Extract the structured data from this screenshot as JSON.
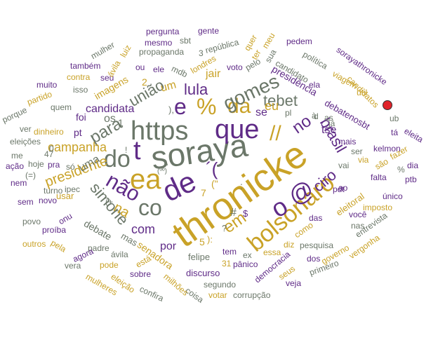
{
  "colors": {
    "purple": "#5f2b87",
    "gold": "#c9a227",
    "gray": "#6b7769",
    "background": "#ffffff"
  },
  "words": [
    {
      "t": "soraya",
      "c": "gray"
    },
    {
      "t": "thronicke",
      "c": "gold"
    },
    {
      "t": "de",
      "c": "purple"
    },
    {
      "t": "https",
      "c": "gray"
    },
    {
      "t": "que",
      "c": "purple"
    },
    {
      "t": "bolsonaro",
      "c": "gold"
    },
    {
      "t": "do",
      "c": "gray"
    },
    {
      "t": "ea",
      "c": "gold"
    },
    {
      "t": "co",
      "c": "gray"
    },
    {
      "t": "não",
      "c": "purple"
    },
    {
      "t": "o",
      "c": "purple"
    },
    {
      "t": "@",
      "c": "purple"
    },
    {
      "t": "%",
      "c": "gold"
    },
    {
      "t": "da",
      "c": "gold"
    },
    {
      "t": "e",
      "c": "purple"
    },
    {
      "t": "t",
      "c": "purple"
    },
    {
      "t": "gomes",
      "c": "gray"
    },
    {
      "t": "tebet",
      "c": "gray"
    },
    {
      "t": "lula",
      "c": "purple"
    },
    {
      "t": "para",
      "c": "gray"
    },
    {
      "t": "união",
      "c": "gray"
    },
    {
      "t": "ciro",
      "c": "purple"
    },
    {
      "t": "brasil",
      "c": "purple"
    },
    {
      "t": "no",
      "c": "purple"
    },
    {
      "t": "em",
      "c": "gold"
    },
    {
      "t": "simone",
      "c": "gray"
    },
    {
      "t": "na",
      "c": "gold"
    },
    {
      "t": "presidente",
      "c": "gold"
    },
    {
      "t": "campanha",
      "c": "gold"
    },
    {
      "t": "candidata",
      "c": "purple"
    },
    {
      "t": "com",
      "c": "purple"
    },
    {
      "t": "por",
      "c": "purple"
    },
    {
      "t": "uma",
      "c": "gray"
    },
    {
      "t": "tse",
      "c": "purple"
    },
    {
      "t": "eu",
      "c": "gold"
    },
    {
      "t": "se",
      "c": "purple"
    },
    {
      "t": "jair",
      "c": "gold"
    },
    {
      "t": "um",
      "c": "gold"
    },
    {
      "t": "os",
      "c": "gray"
    },
    {
      "t": "foi",
      "c": "purple"
    },
    {
      "t": "pt",
      "c": "purple"
    },
    {
      "t": "senadora",
      "c": "gold"
    },
    {
      "t": "debate",
      "c": "gray"
    },
    {
      "t": "mas",
      "c": "gray"
    },
    {
      "t": "felipe",
      "c": "gray"
    },
    {
      "t": "tem",
      "c": "purple"
    },
    {
      "t": "essa",
      "c": "gold"
    },
    {
      "t": "diz",
      "c": "gold"
    },
    {
      "t": "pesquisa",
      "c": "gray"
    },
    {
      "t": "das",
      "c": "purple"
    },
    {
      "t": "como",
      "c": "gold"
    },
    {
      "t": "pdt",
      "c": "purple"
    },
    {
      "t": "eleitoral",
      "c": "gold"
    },
    {
      "t": "ao",
      "c": "purple"
    },
    {
      "t": "vai",
      "c": "gray"
    },
    {
      "t": "mais",
      "c": "purple"
    },
    {
      "t": "debatenosbt",
      "c": "purple"
    },
    {
      "t": "presidência",
      "c": "purple"
    },
    {
      "t": "candidato",
      "c": "gray"
    },
    {
      "t": "ela",
      "c": "purple"
    },
    {
      "t": "política",
      "c": "gray"
    },
    {
      "t": "sorayathronicke",
      "c": "purple"
    },
    {
      "t": "viagem",
      "c": "gold"
    },
    {
      "t": "útil",
      "c": "gold"
    },
    {
      "t": "candidatos",
      "c": "gold"
    },
    {
      "t": "ub",
      "c": "gray"
    },
    {
      "t": "tá",
      "c": "purple"
    },
    {
      "t": "eleita",
      "c": "purple"
    },
    {
      "t": "fazer",
      "c": "gold"
    },
    {
      "t": "dia",
      "c": "purple"
    },
    {
      "t": "ptb",
      "c": "purple"
    },
    {
      "t": "kelmon",
      "c": "purple"
    },
    {
      "t": "ser",
      "c": "gray"
    },
    {
      "t": "via",
      "c": "gold"
    },
    {
      "t": "são",
      "c": "gold"
    },
    {
      "t": "falta",
      "c": "purple"
    },
    {
      "t": "único",
      "c": "purple"
    },
    {
      "t": "imposto",
      "c": "gold"
    },
    {
      "t": "você",
      "c": "purple"
    },
    {
      "t": "nas",
      "c": "gray"
    },
    {
      "t": "entrevista",
      "c": "gray"
    },
    {
      "t": "vergonha",
      "c": "gold"
    },
    {
      "t": "governo",
      "c": "gold"
    },
    {
      "t": "dos",
      "c": "purple"
    },
    {
      "t": "primeiro",
      "c": "gray"
    },
    {
      "t": "seus",
      "c": "gold"
    },
    {
      "t": "veja",
      "c": "purple"
    },
    {
      "t": "democracia",
      "c": "purple"
    },
    {
      "t": "pânico",
      "c": "purple"
    },
    {
      "t": "discurso",
      "c": "purple"
    },
    {
      "t": "segundo",
      "c": "gray"
    },
    {
      "t": "corrupção",
      "c": "gray"
    },
    {
      "t": "votar",
      "c": "gold"
    },
    {
      "t": "coisa",
      "c": "gray"
    },
    {
      "t": "milhões",
      "c": "gold"
    },
    {
      "t": "confira",
      "c": "gray"
    },
    {
      "t": "sobre",
      "c": "purple"
    },
    {
      "t": "eleição",
      "c": "gold"
    },
    {
      "t": "mulheres",
      "c": "gold"
    },
    {
      "t": "está",
      "c": "gold"
    },
    {
      "t": "pode",
      "c": "gold"
    },
    {
      "t": "ávila",
      "c": "gray"
    },
    {
      "t": "padre",
      "c": "gray"
    },
    {
      "t": "agora",
      "c": "purple"
    },
    {
      "t": "vera",
      "c": "gray"
    },
    {
      "t": "pela",
      "c": "gold"
    },
    {
      "t": "outros",
      "c": "gold"
    },
    {
      "t": "proíba",
      "c": "purple"
    },
    {
      "t": "povo",
      "c": "gray"
    },
    {
      "t": "sem",
      "c": "purple"
    },
    {
      "t": "novo",
      "c": "purple"
    },
    {
      "t": "onu",
      "c": "purple"
    },
    {
      "t": "turno",
      "c": "gray"
    },
    {
      "t": "ipec",
      "c": "gray"
    },
    {
      "t": "nem",
      "c": "purple"
    },
    {
      "t": "ação",
      "c": "purple"
    },
    {
      "t": "me",
      "c": "gray"
    },
    {
      "t": "hoje",
      "c": "gray"
    },
    {
      "t": "pra",
      "c": "purple"
    },
    {
      "t": "usar",
      "c": "gold"
    },
    {
      "t": "só",
      "c": "gray"
    },
    {
      "t": "eleições",
      "c": "gray"
    },
    {
      "t": "ver",
      "c": "gray"
    },
    {
      "t": "dinheiro",
      "c": "gold"
    },
    {
      "t": "quem",
      "c": "gray"
    },
    {
      "t": "porque",
      "c": "gray"
    },
    {
      "t": "partido",
      "c": "gold"
    },
    {
      "t": "isso",
      "c": "gray"
    },
    {
      "t": "contra",
      "c": "gold"
    },
    {
      "t": "muito",
      "c": "purple"
    },
    {
      "t": "também",
      "c": "purple"
    },
    {
      "t": "seu",
      "c": "purple"
    },
    {
      "t": "imagens",
      "c": "gold"
    },
    {
      "t": "ávila",
      "c": "gold"
    },
    {
      "t": "mulher",
      "c": "gray"
    },
    {
      "t": "luiz",
      "c": "gold"
    },
    {
      "t": "ou",
      "c": "purple"
    },
    {
      "t": "ele",
      "c": "purple"
    },
    {
      "t": "mdb",
      "c": "gray"
    },
    {
      "t": "londres",
      "c": "gold"
    },
    {
      "t": "voto",
      "c": "purple"
    },
    {
      "t": "pelo",
      "c": "gray"
    },
    {
      "t": "sua",
      "c": "gray"
    },
    {
      "t": "propaganda",
      "c": "gray"
    },
    {
      "t": "república",
      "c": "gray"
    },
    {
      "t": "mesmo",
      "c": "purple"
    },
    {
      "t": "sbt",
      "c": "gray"
    },
    {
      "t": "gente",
      "c": "purple"
    },
    {
      "t": "pergunta",
      "c": "purple"
    },
    {
      "t": "quer",
      "c": "gold"
    },
    {
      "t": "ter",
      "c": "gold"
    },
    {
      "t": "meu",
      "c": "gold"
    },
    {
      "t": "pedem",
      "c": "purple"
    },
    {
      "t": "3",
      "c": "gray"
    },
    {
      "t": "1",
      "c": "gray"
    },
    {
      "t": "2",
      "c": "gold"
    },
    {
      "t": "31",
      "c": "gold"
    },
    {
      "t": "47",
      "c": "gray"
    },
    {
      "t": "5",
      "c": "gold"
    },
    {
      "t": "7",
      "c": "gold"
    },
    {
      "t": "0",
      "c": "gray"
    },
    {
      "t": "ex",
      "c": "gray"
    },
    {
      "t": "à",
      "c": "gray"
    },
    {
      "t": "#",
      "c": "gray"
    },
    {
      "t": "$",
      "c": "purple"
    },
    {
      "t": "(=)",
      "c": "gray"
    },
    {
      "t": "\"",
      "c": "gray"
    },
    {
      "t": "?",
      "c": "gray"
    },
    {
      "t": "!",
      "c": "gray"
    },
    {
      "t": "d",
      "c": "gray"
    },
    {
      "t": "pl",
      "c": "gray"
    },
    {
      "t": "as",
      "c": "gray"
    },
    {
      "t": "já",
      "c": "gray"
    },
    {
      "t": "//",
      "c": "gold"
    },
    {
      "t": "):",
      "c": "gold"
    },
    {
      "t": "(\"",
      "c": "gold"
    },
    {
      "t": "´(",
      "c": "purple"
    },
    {
      "t": "(+",
      "c": "gray"
    },
    {
      "t": "%",
      "c": "gray"
    },
    {
      "t": "(ºº)",
      "c": "gray"
    },
    {
      "t": ":",
      "c": "gray"
    },
    {
      "t": "),",
      "c": "gray"
    }
  ]
}
